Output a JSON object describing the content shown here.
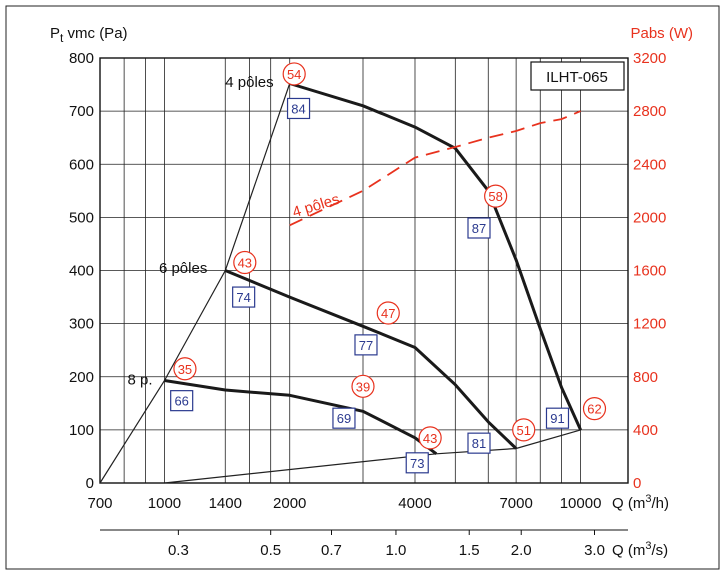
{
  "chart_data": {
    "type": "line",
    "model": "ILHT-065",
    "y_left": {
      "label_main": "P",
      "label_sub": "t",
      "label_rest": " vmc (Pa)",
      "ylim": [
        0,
        800
      ],
      "ticks": [
        "0",
        "100",
        "200",
        "300",
        "400",
        "500",
        "600",
        "700",
        "800"
      ]
    },
    "y_right": {
      "label": "Pabs (W)",
      "ylim": [
        0,
        3200
      ],
      "ticks": [
        "0",
        "400",
        "800",
        "1200",
        "1600",
        "2000",
        "2400",
        "2800",
        "3200"
      ]
    },
    "x_bottom": {
      "label_pre": "Q (m",
      "label_sup": "3",
      "label_post": "/h)",
      "scale": "log",
      "ticks": [
        "700",
        "1000",
        "1400",
        "2000",
        "4000",
        "7000",
        "10000"
      ]
    },
    "x_flow_s": {
      "label_pre": "Q (m",
      "label_sup": "3",
      "label_post": "/s)",
      "ticks": [
        "0.3",
        "0.5",
        "0.7",
        "1.0",
        "1.5",
        "2.0",
        "3.0"
      ]
    },
    "series": [
      {
        "name": "4 pôles",
        "x": [
          2000,
          3000,
          4000,
          5000,
          6000,
          7000,
          8000,
          9000,
          10000
        ],
        "y": [
          752,
          710,
          670,
          630,
          550,
          420,
          290,
          180,
          100
        ]
      },
      {
        "name": "6 pôles",
        "x": [
          1400,
          2000,
          3000,
          4000,
          5000,
          6000,
          7000
        ],
        "y": [
          400,
          350,
          295,
          255,
          185,
          115,
          65
        ]
      },
      {
        "name": "8 p.",
        "x": [
          1000,
          1400,
          2000,
          3000,
          4000,
          4500
        ],
        "y": [
          193,
          175,
          165,
          135,
          85,
          55
        ]
      }
    ],
    "system_curve": {
      "x": [
        700,
        1000,
        1400,
        2000
      ],
      "y": [
        0,
        193,
        400,
        752
      ]
    },
    "efficiency_line": {
      "x": [
        1000,
        4500,
        7000,
        10000
      ],
      "y": [
        0,
        55,
        65,
        100
      ]
    },
    "power_curve": {
      "label": "4 pôles",
      "x": [
        2000,
        3000,
        4000,
        5000,
        6000,
        7000,
        8000,
        9000,
        10000
      ],
      "p": [
        1940,
        2200,
        2450,
        2530,
        2600,
        2650,
        2710,
        2740,
        2800
      ]
    },
    "efficiency_labels": [
      {
        "value": "54",
        "x": 2050,
        "y": 770
      },
      {
        "value": "84",
        "x": 2100,
        "y": 705
      },
      {
        "value": "58",
        "x": 6250,
        "y": 540
      },
      {
        "value": "87",
        "x": 5700,
        "y": 480
      },
      {
        "value": "43",
        "x": 1560,
        "y": 415
      },
      {
        "value": "74",
        "x": 1550,
        "y": 350
      },
      {
        "value": "47",
        "x": 3450,
        "y": 320
      },
      {
        "value": "77",
        "x": 3050,
        "y": 260
      },
      {
        "value": "35",
        "x": 1120,
        "y": 215
      },
      {
        "value": "66",
        "x": 1100,
        "y": 155
      },
      {
        "value": "39",
        "x": 3000,
        "y": 182
      },
      {
        "value": "69",
        "x": 2700,
        "y": 122
      },
      {
        "value": "43",
        "x": 4350,
        "y": 85
      },
      {
        "value": "73",
        "x": 4050,
        "y": 38
      },
      {
        "value": "51",
        "x": 7300,
        "y": 100
      },
      {
        "value": "81",
        "x": 5700,
        "y": 75
      },
      {
        "value": "91",
        "x": 8800,
        "y": 122
      },
      {
        "value": "62",
        "x": 10800,
        "y": 140
      }
    ],
    "curve_labels": [
      {
        "text": "4 pôles",
        "x": 1400,
        "y": 755
      },
      {
        "text": "6 pôles",
        "x": 970,
        "y": 405
      },
      {
        "text": "8 p.",
        "x": 815,
        "y": 195
      }
    ],
    "circle_color": "#e8321e",
    "box_color": "#2b3a8f",
    "curve_color": "#1a1a1a",
    "power_color": "#e8321e"
  }
}
